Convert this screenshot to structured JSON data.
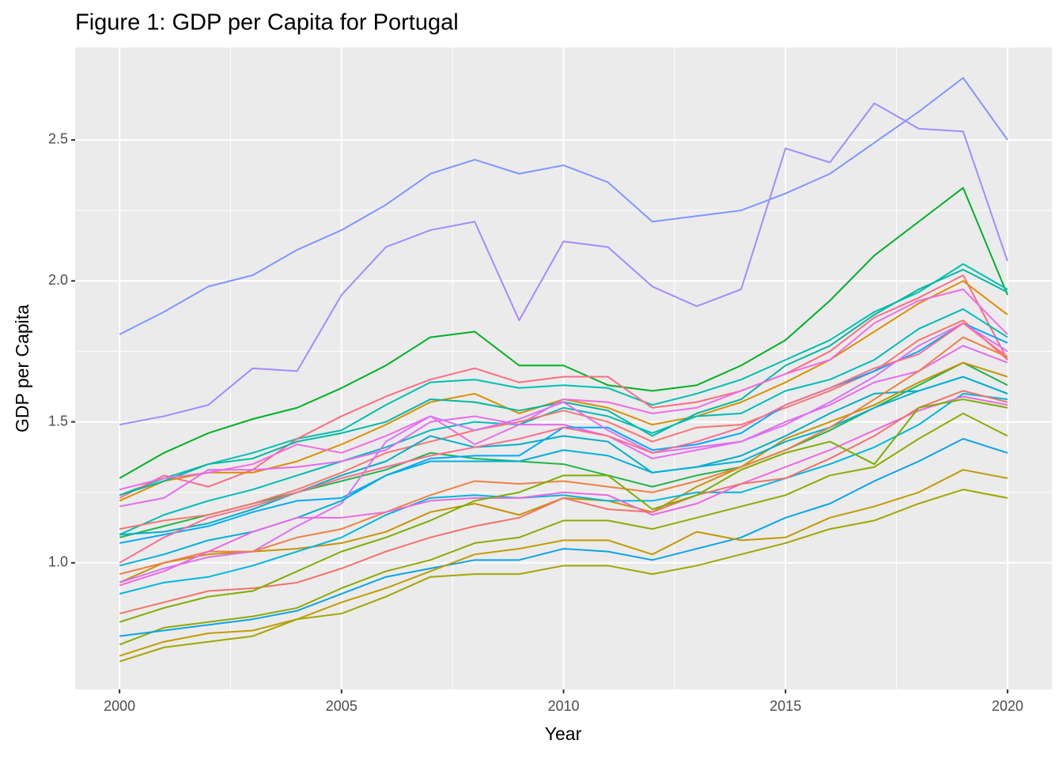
{
  "chart_data": {
    "type": "line",
    "title": "Figure 1: GDP per Capita for Portugal",
    "x_label": "Year",
    "y_label": "GDP per Capita",
    "x": [
      2000,
      2001,
      2002,
      2003,
      2004,
      2005,
      2006,
      2007,
      2008,
      2009,
      2010,
      2011,
      2012,
      2013,
      2014,
      2015,
      2016,
      2017,
      2018,
      2019,
      2020
    ],
    "xlim": [
      1999,
      2021
    ],
    "xticks": [
      2000,
      2005,
      2010,
      2015,
      2020
    ],
    "ylim": [
      0.551,
      2.828
    ],
    "yticks": [
      {
        "value": 1,
        "label": "1.0"
      },
      1.5,
      {
        "value": 2,
        "label": "2.0"
      },
      2.5
    ],
    "grid": true,
    "series": [
      {
        "color": "#7F96FF",
        "values": [
          1.81,
          1.89,
          1.98,
          2.02,
          2.11,
          2.18,
          2.27,
          2.38,
          2.43,
          2.38,
          2.41,
          2.35,
          2.21,
          2.23,
          2.25,
          2.31,
          2.38,
          2.49,
          2.6,
          2.72,
          2.5
        ]
      },
      {
        "color": "#A58AFF",
        "values": [
          1.49,
          1.52,
          1.56,
          1.69,
          1.68,
          1.95,
          2.12,
          2.18,
          2.21,
          1.86,
          2.14,
          2.12,
          1.98,
          1.91,
          1.97,
          2.47,
          2.42,
          2.63,
          2.54,
          2.53,
          2.07
        ]
      },
      {
        "color": "#00B025",
        "values": [
          1.3,
          1.39,
          1.46,
          1.51,
          1.55,
          1.62,
          1.7,
          1.8,
          1.82,
          1.7,
          1.7,
          1.63,
          1.61,
          1.63,
          1.7,
          1.79,
          1.93,
          2.09,
          2.21,
          2.33,
          1.95
        ]
      },
      {
        "color": "#00BFB0",
        "values": [
          1.24,
          1.3,
          1.35,
          1.39,
          1.44,
          1.47,
          1.56,
          1.64,
          1.65,
          1.62,
          1.63,
          1.62,
          1.56,
          1.6,
          1.65,
          1.72,
          1.79,
          1.89,
          1.96,
          2.06,
          1.97
        ]
      },
      {
        "color": "#FB6D82",
        "values": [
          1.23,
          1.31,
          1.27,
          1.33,
          1.44,
          1.52,
          1.59,
          1.65,
          1.69,
          1.64,
          1.66,
          1.66,
          1.55,
          1.57,
          1.61,
          1.67,
          1.75,
          1.87,
          1.94,
          2.02,
          1.72
        ]
      },
      {
        "color": "#DB8E00",
        "values": [
          1.22,
          1.29,
          1.32,
          1.32,
          1.36,
          1.42,
          1.49,
          1.57,
          1.6,
          1.53,
          1.58,
          1.55,
          1.49,
          1.52,
          1.57,
          1.64,
          1.72,
          1.82,
          1.92,
          2.0,
          1.88
        ]
      },
      {
        "color": "#00B8A0",
        "values": [
          1.24,
          1.29,
          1.35,
          1.37,
          1.43,
          1.46,
          1.5,
          1.58,
          1.57,
          1.54,
          1.57,
          1.54,
          1.45,
          1.53,
          1.58,
          1.7,
          1.77,
          1.88,
          1.97,
          2.04,
          1.96
        ]
      },
      {
        "color": "#EE6CE6",
        "values": [
          1.26,
          1.3,
          1.32,
          1.35,
          1.42,
          1.39,
          1.45,
          1.52,
          1.42,
          1.49,
          1.58,
          1.57,
          1.53,
          1.55,
          1.61,
          1.67,
          1.72,
          1.85,
          1.93,
          1.97,
          1.81
        ]
      },
      {
        "color": "#1FB54A",
        "values": [
          1.09,
          1.13,
          1.17,
          1.21,
          1.25,
          1.29,
          1.33,
          1.39,
          1.37,
          1.36,
          1.35,
          1.31,
          1.27,
          1.31,
          1.34,
          1.4,
          1.47,
          1.55,
          1.63,
          1.71,
          1.63
        ]
      },
      {
        "color": "#00BCB8",
        "values": [
          1.1,
          1.17,
          1.22,
          1.26,
          1.31,
          1.36,
          1.41,
          1.47,
          1.5,
          1.49,
          1.55,
          1.52,
          1.46,
          1.52,
          1.53,
          1.61,
          1.65,
          1.72,
          1.83,
          1.9,
          1.8
        ]
      },
      {
        "color": "#F8766D",
        "values": [
          1.12,
          1.15,
          1.17,
          1.21,
          1.26,
          1.32,
          1.39,
          1.43,
          1.47,
          1.5,
          1.54,
          1.5,
          1.43,
          1.48,
          1.49,
          1.55,
          1.61,
          1.68,
          1.79,
          1.86,
          1.72
        ]
      },
      {
        "color": "#E46BF0",
        "values": [
          1.2,
          1.23,
          1.33,
          1.33,
          1.34,
          1.36,
          1.4,
          1.5,
          1.52,
          1.49,
          1.49,
          1.45,
          1.37,
          1.4,
          1.43,
          1.5,
          1.56,
          1.64,
          1.68,
          1.77,
          1.71
        ]
      },
      {
        "color": "#00A9FF",
        "values": [
          1.07,
          1.1,
          1.13,
          1.18,
          1.22,
          1.23,
          1.31,
          1.37,
          1.38,
          1.38,
          1.48,
          1.48,
          1.4,
          1.42,
          1.46,
          1.56,
          1.62,
          1.68,
          1.75,
          1.85,
          1.78
        ]
      },
      {
        "color": "#00AFC8",
        "values": [
          1.1,
          1.11,
          1.14,
          1.19,
          1.25,
          1.31,
          1.36,
          1.45,
          1.41,
          1.42,
          1.45,
          1.43,
          1.32,
          1.34,
          1.38,
          1.45,
          1.53,
          1.6,
          1.61,
          1.66,
          1.6
        ]
      },
      {
        "color": "#C89200",
        "values": [
          0.93,
          1.0,
          1.03,
          1.04,
          1.05,
          1.07,
          1.11,
          1.18,
          1.21,
          1.17,
          1.23,
          1.22,
          1.18,
          1.27,
          1.34,
          1.44,
          1.5,
          1.56,
          1.64,
          1.71,
          1.66
        ]
      },
      {
        "color": "#D874F5",
        "values": [
          0.93,
          0.98,
          1.02,
          1.04,
          1.13,
          1.21,
          1.43,
          1.52,
          1.47,
          1.51,
          1.57,
          1.47,
          1.39,
          1.41,
          1.43,
          1.49,
          1.57,
          1.66,
          1.77,
          1.85,
          1.75
        ]
      },
      {
        "color": "#00B0D8",
        "values": [
          0.99,
          1.03,
          1.08,
          1.11,
          1.16,
          1.22,
          1.31,
          1.36,
          1.36,
          1.36,
          1.4,
          1.38,
          1.32,
          1.34,
          1.36,
          1.43,
          1.48,
          1.55,
          1.61,
          1.66,
          1.6
        ]
      },
      {
        "color": "#FA6E8E",
        "values": [
          1.0,
          1.09,
          1.16,
          1.2,
          1.25,
          1.3,
          1.34,
          1.38,
          1.41,
          1.44,
          1.48,
          1.45,
          1.39,
          1.43,
          1.48,
          1.56,
          1.62,
          1.69,
          1.74,
          1.85,
          1.73
        ]
      },
      {
        "color": "#EE8044",
        "values": [
          0.96,
          1.0,
          1.04,
          1.04,
          1.09,
          1.12,
          1.18,
          1.24,
          1.29,
          1.28,
          1.29,
          1.27,
          1.25,
          1.29,
          1.34,
          1.4,
          1.48,
          1.58,
          1.68,
          1.8,
          1.73
        ]
      },
      {
        "color": "#00B6E0",
        "values": [
          0.89,
          0.93,
          0.95,
          0.99,
          1.04,
          1.09,
          1.17,
          1.23,
          1.24,
          1.23,
          1.24,
          1.22,
          1.22,
          1.25,
          1.25,
          1.3,
          1.35,
          1.41,
          1.49,
          1.6,
          1.58
        ]
      },
      {
        "color": "#F066E0",
        "values": [
          0.92,
          0.97,
          1.04,
          1.11,
          1.16,
          1.16,
          1.18,
          1.22,
          1.23,
          1.23,
          1.25,
          1.24,
          1.17,
          1.21,
          1.28,
          1.34,
          1.4,
          1.47,
          1.54,
          1.59,
          1.56
        ]
      },
      {
        "color": "#F3726A",
        "values": [
          0.82,
          0.86,
          0.9,
          0.91,
          0.93,
          0.98,
          1.04,
          1.09,
          1.13,
          1.16,
          1.23,
          1.19,
          1.18,
          1.24,
          1.28,
          1.3,
          1.37,
          1.45,
          1.55,
          1.61,
          1.57
        ]
      },
      {
        "color": "#7CAE00",
        "values": [
          0.79,
          0.84,
          0.88,
          0.9,
          0.97,
          1.04,
          1.09,
          1.15,
          1.22,
          1.25,
          1.31,
          1.31,
          1.19,
          1.24,
          1.33,
          1.39,
          1.43,
          1.35,
          1.55,
          1.58,
          1.55
        ]
      },
      {
        "color": "#8FAA00",
        "values": [
          0.71,
          0.77,
          0.79,
          0.81,
          0.84,
          0.91,
          0.97,
          1.01,
          1.07,
          1.09,
          1.15,
          1.15,
          1.12,
          1.16,
          1.2,
          1.24,
          1.31,
          1.34,
          1.44,
          1.53,
          1.45
        ]
      },
      {
        "color": "#0AA4E8",
        "values": [
          0.74,
          0.76,
          0.78,
          0.8,
          0.83,
          0.89,
          0.95,
          0.98,
          1.01,
          1.01,
          1.05,
          1.04,
          1.01,
          1.05,
          1.09,
          1.16,
          1.21,
          1.29,
          1.36,
          1.44,
          1.39
        ]
      },
      {
        "color": "#C09B00",
        "values": [
          0.67,
          0.72,
          0.75,
          0.76,
          0.8,
          0.86,
          0.91,
          0.97,
          1.03,
          1.05,
          1.08,
          1.08,
          1.03,
          1.11,
          1.08,
          1.09,
          1.16,
          1.2,
          1.25,
          1.33,
          1.3
        ]
      },
      {
        "color": "#A3A500",
        "values": [
          0.65,
          0.7,
          0.72,
          0.74,
          0.8,
          0.82,
          0.88,
          0.95,
          0.96,
          0.96,
          0.99,
          0.99,
          0.96,
          0.99,
          1.03,
          1.07,
          1.12,
          1.15,
          1.21,
          1.26,
          1.23
        ]
      }
    ]
  }
}
